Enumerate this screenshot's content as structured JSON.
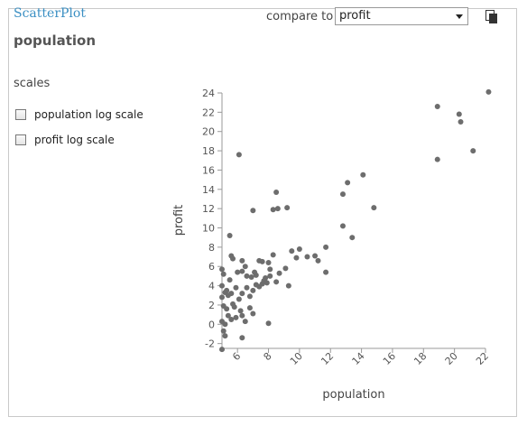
{
  "app_title": "ScatterPlot",
  "variable_title": "population",
  "compare": {
    "label": "compare to",
    "selected": "profit"
  },
  "scales": {
    "label": "scales",
    "options": [
      {
        "label": "population log scale",
        "checked": false
      },
      {
        "label": "profit log scale",
        "checked": false
      }
    ]
  },
  "icons": {
    "copy": "copy-icon",
    "dropdown": "chevron-down-icon"
  },
  "colors": {
    "title": "#3a8fc3",
    "points": "#6d6d6d"
  },
  "chart_data": {
    "type": "scatter",
    "xlabel": "population",
    "ylabel": "profit",
    "xlim": [
      5,
      22
    ],
    "ylim": [
      -2.5,
      24
    ],
    "x_ticks": [
      6,
      8,
      10,
      12,
      14,
      16,
      18,
      20,
      22
    ],
    "y_ticks": [
      -2,
      0,
      2,
      4,
      6,
      8,
      10,
      12,
      14,
      16,
      18,
      20,
      22,
      24
    ],
    "grid": false,
    "points": [
      [
        6.1,
        17.6
      ],
      [
        5.5,
        9.2
      ],
      [
        8.5,
        13.7
      ],
      [
        8.3,
        11.9
      ],
      [
        8.6,
        12.0
      ],
      [
        9.2,
        12.1
      ],
      [
        7.0,
        11.8
      ],
      [
        5.0,
        5.7
      ],
      [
        5.1,
        5.2
      ],
      [
        5.6,
        7.1
      ],
      [
        5.7,
        6.8
      ],
      [
        6.3,
        6.6
      ],
      [
        6.0,
        5.4
      ],
      [
        6.3,
        5.5
      ],
      [
        6.5,
        6.0
      ],
      [
        6.9,
        4.9
      ],
      [
        7.2,
        5.1
      ],
      [
        7.4,
        6.6
      ],
      [
        7.6,
        6.5
      ],
      [
        7.8,
        4.8
      ],
      [
        8.0,
        6.4
      ],
      [
        8.1,
        5.7
      ],
      [
        8.3,
        7.2
      ],
      [
        8.1,
        5.0
      ],
      [
        8.5,
        4.4
      ],
      [
        8.7,
        5.3
      ],
      [
        9.1,
        5.8
      ],
      [
        9.3,
        4.0
      ],
      [
        9.5,
        7.6
      ],
      [
        9.8,
        6.9
      ],
      [
        10.0,
        7.8
      ],
      [
        10.5,
        7.0
      ],
      [
        11.0,
        7.1
      ],
      [
        11.2,
        6.6
      ],
      [
        11.7,
        8.0
      ],
      [
        11.7,
        5.4
      ],
      [
        5.0,
        4.0
      ],
      [
        5.2,
        3.3
      ],
      [
        5.4,
        3.0
      ],
      [
        5.6,
        3.2
      ],
      [
        5.9,
        3.8
      ],
      [
        6.1,
        2.6
      ],
      [
        6.3,
        3.2
      ],
      [
        6.6,
        3.8
      ],
      [
        6.8,
        2.9
      ],
      [
        7.0,
        3.5
      ],
      [
        7.2,
        4.1
      ],
      [
        7.4,
        3.9
      ],
      [
        7.6,
        4.2
      ],
      [
        7.7,
        4.5
      ],
      [
        7.9,
        4.3
      ],
      [
        7.1,
        5.4
      ],
      [
        6.6,
        5.0
      ],
      [
        5.5,
        4.6
      ],
      [
        5.3,
        3.5
      ],
      [
        5.0,
        2.8
      ],
      [
        5.1,
        1.9
      ],
      [
        5.3,
        1.6
      ],
      [
        5.4,
        0.9
      ],
      [
        5.6,
        0.5
      ],
      [
        5.8,
        1.8
      ],
      [
        5.9,
        0.7
      ],
      [
        6.2,
        1.4
      ],
      [
        6.3,
        0.9
      ],
      [
        6.5,
        0.3
      ],
      [
        5.2,
        0.0
      ],
      [
        5.0,
        0.3
      ],
      [
        5.1,
        -0.7
      ],
      [
        5.2,
        -1.2
      ],
      [
        5.0,
        -2.6
      ],
      [
        6.3,
        -1.4
      ],
      [
        7.0,
        1.1
      ],
      [
        8.0,
        0.1
      ],
      [
        6.8,
        1.7
      ],
      [
        5.7,
        2.1
      ],
      [
        12.8,
        10.2
      ],
      [
        12.8,
        13.5
      ],
      [
        13.1,
        14.7
      ],
      [
        14.1,
        15.5
      ],
      [
        13.4,
        9.0
      ],
      [
        14.8,
        12.1
      ],
      [
        18.9,
        22.6
      ],
      [
        18.9,
        17.1
      ],
      [
        20.3,
        21.8
      ],
      [
        20.4,
        21.0
      ],
      [
        21.2,
        18.0
      ],
      [
        22.2,
        24.1
      ]
    ]
  }
}
